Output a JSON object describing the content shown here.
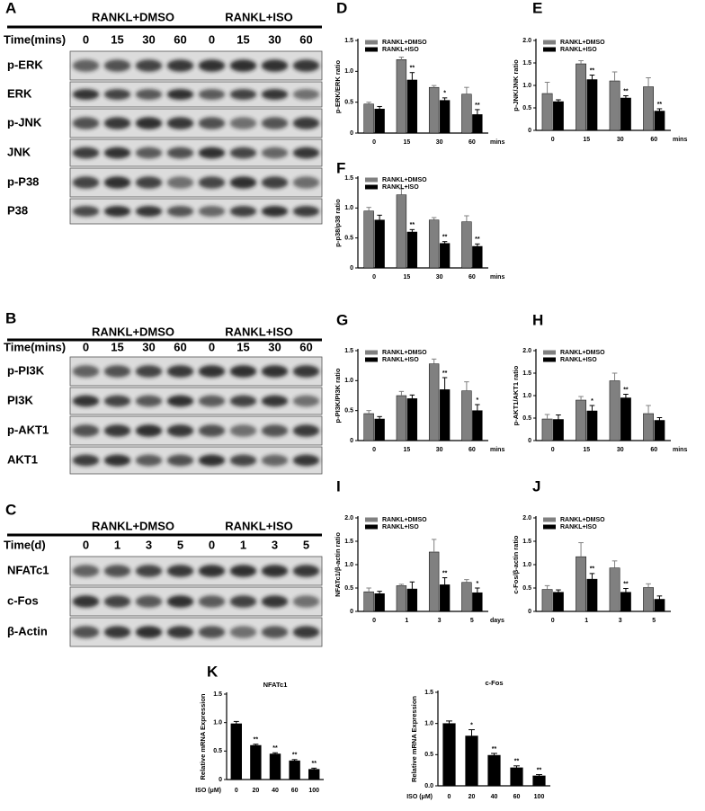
{
  "blots": [
    {
      "panel": "A",
      "groups": [
        "RANKL+DMSO",
        "RANKL+ISO"
      ],
      "time_label": "Time(mins)",
      "lanes": [
        "0",
        "15",
        "30",
        "60",
        "0",
        "15",
        "30",
        "60"
      ],
      "rows": [
        "p-ERK",
        "ERK",
        "p-JNK",
        "JNK",
        "p-P38",
        "P38"
      ]
    },
    {
      "panel": "B",
      "groups": [
        "RANKL+DMSO",
        "RANKL+ISO"
      ],
      "time_label": "Time(mins)",
      "lanes": [
        "0",
        "15",
        "30",
        "60",
        "0",
        "15",
        "30",
        "60"
      ],
      "rows": [
        "p-PI3K",
        "PI3K",
        "p-AKT1",
        "AKT1"
      ]
    },
    {
      "panel": "C",
      "groups": [
        "RANKL+DMSO",
        "RANKL+ISO"
      ],
      "time_label": "Time(d)",
      "lanes": [
        "0",
        "1",
        "3",
        "5",
        "0",
        "1",
        "3",
        "5"
      ],
      "rows": [
        "NFATc1",
        "c-Fos",
        "β-Actin"
      ]
    }
  ],
  "chart_data": [
    {
      "type": "bar",
      "panel": "D",
      "ylabel": "p-ERK/ERK ratio",
      "xunit": "mins",
      "categories": [
        "0",
        "15",
        "30",
        "60"
      ],
      "legend": "upper left",
      "ylim": [
        0,
        1.5
      ],
      "yticks": [
        0,
        0.5,
        {
          "value": 1,
          "label": "1.0"
        },
        1.5
      ],
      "series": [
        {
          "name": "RANKL+DMSO",
          "color": "#808080",
          "values": [
            0.47,
            1.19,
            0.74,
            0.63
          ],
          "errors": [
            0.03,
            0.04,
            0.03,
            0.11
          ]
        },
        {
          "name": "RANKL+ISO",
          "color": "#000000",
          "values": [
            0.39,
            0.86,
            0.53,
            0.3
          ],
          "errors": [
            0.04,
            0.12,
            0.04,
            0.08
          ],
          "significance": [
            null,
            "**",
            "*",
            "**"
          ]
        }
      ]
    },
    {
      "type": "bar",
      "panel": "E",
      "ylabel": "p-JNK/JNK ratio",
      "xunit": "mins",
      "categories": [
        "0",
        "15",
        "30",
        "60"
      ],
      "legend": "upper left",
      "ylim": [
        0,
        2
      ],
      "yticks": [
        0,
        0.5,
        {
          "value": 1,
          "label": "1.0"
        },
        1.5,
        {
          "value": 2,
          "label": "2.0"
        }
      ],
      "series": [
        {
          "name": "RANKL+DMSO",
          "color": "#808080",
          "values": [
            0.82,
            1.48,
            1.1,
            0.97
          ],
          "errors": [
            0.25,
            0.07,
            0.2,
            0.2
          ]
        },
        {
          "name": "RANKL+ISO",
          "color": "#000000",
          "values": [
            0.64,
            1.13,
            0.72,
            0.43
          ],
          "errors": [
            0.04,
            0.1,
            0.05,
            0.05
          ],
          "significance": [
            null,
            "**",
            "**",
            "**"
          ]
        }
      ]
    },
    {
      "type": "bar",
      "panel": "F",
      "ylabel": "p-p38/p38 ratio",
      "xunit": "mins",
      "categories": [
        "0",
        "15",
        "30",
        "60"
      ],
      "legend": "upper left",
      "ylim": [
        0,
        1.5
      ],
      "yticks": [
        0,
        0.5,
        {
          "value": 1,
          "label": "1.0"
        },
        1.5
      ],
      "series": [
        {
          "name": "RANKL+DMSO",
          "color": "#808080",
          "values": [
            0.95,
            1.22,
            0.8,
            0.77
          ],
          "errors": [
            0.06,
            0.1,
            0.04,
            0.1
          ]
        },
        {
          "name": "RANKL+ISO",
          "color": "#000000",
          "values": [
            0.8,
            0.6,
            0.41,
            0.36
          ],
          "errors": [
            0.08,
            0.04,
            0.03,
            0.04
          ],
          "significance": [
            null,
            "**",
            "**",
            "**"
          ]
        }
      ]
    },
    {
      "type": "bar",
      "panel": "G",
      "ylabel": "p-PI3K/PI3K ratio",
      "xunit": "mins",
      "categories": [
        "0",
        "15",
        "30",
        "60"
      ],
      "legend": "upper left",
      "ylim": [
        0,
        1.5
      ],
      "yticks": [
        0,
        0.5,
        {
          "value": 1,
          "label": "1.0"
        },
        1.5
      ],
      "series": [
        {
          "name": "RANKL+DMSO",
          "color": "#808080",
          "values": [
            0.45,
            0.75,
            1.28,
            0.83
          ],
          "errors": [
            0.05,
            0.07,
            0.08,
            0.15
          ]
        },
        {
          "name": "RANKL+ISO",
          "color": "#000000",
          "values": [
            0.36,
            0.7,
            0.85,
            0.5
          ],
          "errors": [
            0.04,
            0.06,
            0.2,
            0.1
          ],
          "significance": [
            null,
            null,
            "**",
            "*"
          ]
        }
      ]
    },
    {
      "type": "bar",
      "panel": "H",
      "ylabel": "p-AKT1/AKT1 ratio",
      "xunit": "mins",
      "categories": [
        "0",
        "15",
        "30",
        "60"
      ],
      "legend": "upper left",
      "ylim": [
        0,
        2
      ],
      "yticks": [
        0,
        0.5,
        {
          "value": 1,
          "label": "1.0"
        },
        1.5,
        {
          "value": 2,
          "label": "2.0"
        }
      ],
      "series": [
        {
          "name": "RANKL+DMSO",
          "color": "#808080",
          "values": [
            0.48,
            0.9,
            1.33,
            0.6
          ],
          "errors": [
            0.1,
            0.08,
            0.17,
            0.18
          ]
        },
        {
          "name": "RANKL+ISO",
          "color": "#000000",
          "values": [
            0.47,
            0.66,
            0.95,
            0.45
          ],
          "errors": [
            0.1,
            0.12,
            0.08,
            0.06
          ],
          "significance": [
            null,
            "*",
            "**",
            null
          ]
        }
      ]
    },
    {
      "type": "bar",
      "panel": "I",
      "ylabel": "NFATc1/β-actin ratio",
      "xunit": "days",
      "categories": [
        "0",
        "1",
        "3",
        "5"
      ],
      "legend": "upper left",
      "ylim": [
        0,
        2
      ],
      "yticks": [
        0,
        0.5,
        {
          "value": 1,
          "label": "1.0"
        },
        1.5,
        {
          "value": 2,
          "label": "2.0"
        }
      ],
      "series": [
        {
          "name": "RANKL+DMSO",
          "color": "#808080",
          "values": [
            0.42,
            0.55,
            1.27,
            0.62
          ],
          "errors": [
            0.08,
            0.03,
            0.27,
            0.06
          ]
        },
        {
          "name": "RANKL+ISO",
          "color": "#000000",
          "values": [
            0.38,
            0.48,
            0.57,
            0.4
          ],
          "errors": [
            0.05,
            0.15,
            0.15,
            0.1
          ],
          "significance": [
            null,
            null,
            "**",
            "*"
          ]
        }
      ]
    },
    {
      "type": "bar",
      "panel": "J",
      "ylabel": "c-Fos/β-actin ratio",
      "categories": [
        "0",
        "1",
        "3",
        "5"
      ],
      "legend": "upper left",
      "ylim": [
        0,
        2
      ],
      "yticks": [
        0,
        0.5,
        {
          "value": 1,
          "label": "1.0"
        },
        1.5,
        {
          "value": 2,
          "label": "2.0"
        }
      ],
      "series": [
        {
          "name": "RANKL+DMSO",
          "color": "#808080",
          "values": [
            0.47,
            1.17,
            0.93,
            0.51
          ],
          "errors": [
            0.08,
            0.3,
            0.15,
            0.08
          ]
        },
        {
          "name": "RANKL+ISO",
          "color": "#000000",
          "values": [
            0.41,
            0.69,
            0.41,
            0.26
          ],
          "errors": [
            0.05,
            0.12,
            0.08,
            0.07
          ],
          "significance": [
            null,
            "**",
            "**",
            null
          ]
        }
      ]
    },
    {
      "type": "bar",
      "panel": "K",
      "title": "NFATc1",
      "ylabel": "Relative mRNA Expression",
      "xlabel": "ISO (μM)",
      "categories": [
        "0",
        "20",
        "40",
        "60",
        "100"
      ],
      "ylim": [
        0,
        1.5
      ],
      "yticks": [
        0,
        0.5,
        {
          "value": 1,
          "label": "1.0"
        },
        1.5
      ],
      "series": [
        {
          "color": "#000000",
          "values": [
            0.98,
            0.6,
            0.45,
            0.33,
            0.18
          ],
          "errors": [
            0.04,
            0.02,
            0.02,
            0.02,
            0.02
          ],
          "significance": [
            null,
            "**",
            "**",
            "**",
            "**"
          ]
        }
      ]
    },
    {
      "type": "bar",
      "title": "c-Fos",
      "ylabel": "Relative  mRNA Expression",
      "xlabel": "ISO (μM)",
      "categories": [
        "0",
        "20",
        "40",
        "60",
        "100"
      ],
      "ylim": [
        0,
        1.5
      ],
      "yticks": [
        {
          "value": 0,
          "label": "0.0"
        },
        0.5,
        {
          "value": 1,
          "label": "1.0"
        },
        1.5
      ],
      "series": [
        {
          "color": "#000000",
          "values": [
            1.0,
            0.8,
            0.49,
            0.29,
            0.16
          ],
          "errors": [
            0.04,
            0.1,
            0.03,
            0.03,
            0.02
          ],
          "significance": [
            null,
            "*",
            "**",
            "**",
            "**"
          ]
        }
      ]
    }
  ]
}
